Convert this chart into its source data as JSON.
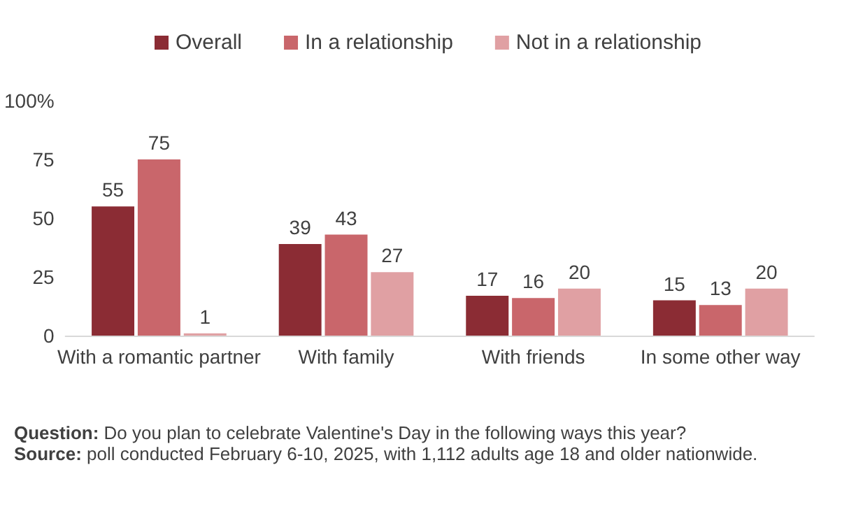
{
  "chart_data": {
    "type": "bar",
    "categories": [
      "With a romantic partner",
      "With family",
      "With friends",
      "In some other way"
    ],
    "series": [
      {
        "name": "Overall",
        "color": "#8b2c34",
        "values": [
          55,
          39,
          17,
          15
        ]
      },
      {
        "name": "In a relationship",
        "color": "#c9666b",
        "values": [
          75,
          43,
          16,
          13
        ]
      },
      {
        "name": "Not in a relationship",
        "color": "#e0a0a3",
        "values": [
          1,
          27,
          20,
          20
        ]
      }
    ],
    "ylim": [
      0,
      100
    ],
    "yticks": [
      0,
      25,
      50,
      75,
      {
        "value": 100,
        "label": "100%"
      }
    ],
    "grid": false,
    "legend": "top",
    "data_labels": true,
    "annotations": [
      "Question: Do you plan to celebrate Valentine's Day in the following ways this year?",
      "Source: poll conducted February 6-10, 2025, with 1,112 adults age 18 and older nationwide."
    ]
  }
}
